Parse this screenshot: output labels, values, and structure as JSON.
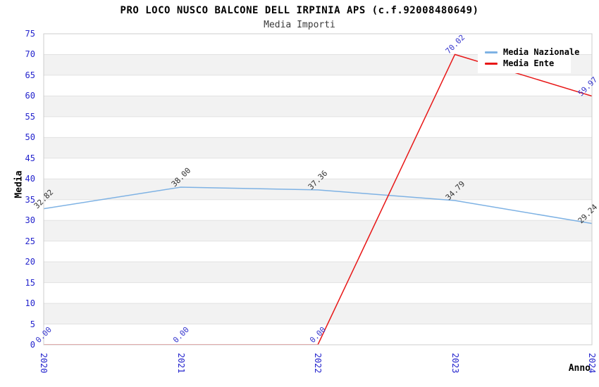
{
  "header": {
    "title": "PRO LOCO NUSCO BALCONE DELL IRPINIA APS (c.f.92008480649)",
    "subtitle": "Media Importi"
  },
  "legend": {
    "items": [
      {
        "label": "Media Nazionale"
      },
      {
        "label": "Media Ente"
      }
    ]
  },
  "chart_data": {
    "type": "line",
    "title": "PRO LOCO NUSCO BALCONE DELL IRPINIA APS (c.f.92008480649)",
    "subtitle": "Media Importi",
    "xlabel": "Anno",
    "ylabel": "Media",
    "x": [
      2020,
      2021,
      2022,
      2023,
      2024
    ],
    "series": [
      {
        "name": "Media Nazionale",
        "color": "#7EB2E4",
        "label_color": "#333333",
        "values": [
          32.82,
          38.0,
          37.36,
          34.79,
          29.24
        ]
      },
      {
        "name": "Media Ente",
        "color": "#E81717",
        "label_color": "#3535CD",
        "values": [
          0.0,
          0.0,
          0.0,
          70.02,
          59.97
        ]
      }
    ],
    "ylim": [
      0,
      75
    ],
    "ytick_step": 5,
    "grid": "horizontal-bands",
    "legend_position": "top-right",
    "colors": {
      "tick_label": "#2323CD",
      "band": "#F2F2F2",
      "gridline": "#E2E2E2",
      "plot_border": "#CCCCCC"
    }
  }
}
